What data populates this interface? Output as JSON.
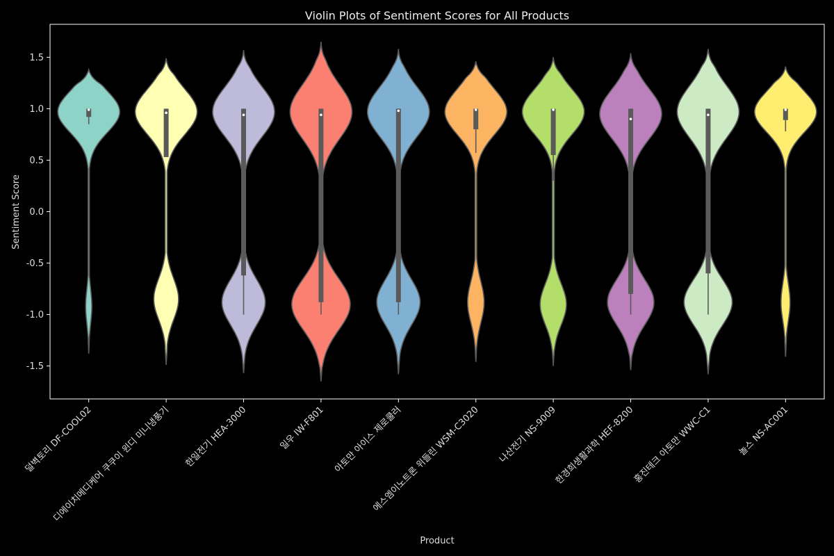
{
  "chart_data": {
    "type": "violin",
    "title": "Violin Plots of Sentiment Scores for All Products",
    "xlabel": "Product",
    "ylabel": "Sentiment Score",
    "ylim": [
      -1.82,
      1.82
    ],
    "yticks": [
      1.5,
      1.0,
      0.5,
      0.0,
      -0.5,
      -1.0,
      -1.5
    ],
    "ytick_labels": [
      "1.5",
      "1.0",
      "0.5",
      "0.0",
      "-0.5",
      "-1.0",
      "-1.5"
    ],
    "grid": false,
    "categories": [
      "덜벽토리 DF-COOL02",
      "디에이치메디케어 쿠쿠이 윈디 미니냉풍기",
      "한일전기 HEA-3000",
      "일우 IW-F801",
      "아토만 아이스 제로쿨러",
      "에스엠이노트론 위들린 WSM-C3020",
      "나산전기 NS-9009",
      "한경희생활과학 HEF-8200",
      "홍진테크 아토만 WWC-C1",
      "놀스 NS-AC001"
    ],
    "colors": [
      "#8dd3c7",
      "#ffffb3",
      "#bebada",
      "#fb8072",
      "#80b1d3",
      "#fdb462",
      "#b3de69",
      "#bc80bd",
      "#ccebc5",
      "#ffed6f"
    ],
    "violins": [
      {
        "min": -1.38,
        "max": 1.38,
        "upper_mode": 0.97,
        "upper_width": 0.4,
        "upper_spread": 0.2,
        "lower_mode": -0.92,
        "lower_width": 0.04,
        "lower_spread": 0.17,
        "q1": 0.92,
        "median": 0.99,
        "q3": 1.0,
        "whisker_low": 0.85,
        "whisker_high": 1.0
      },
      {
        "min": -1.49,
        "max": 1.49,
        "upper_mode": 0.97,
        "upper_width": 0.25,
        "upper_spread": 0.22,
        "lower_mode": -0.85,
        "lower_width": 0.1,
        "lower_spread": 0.2,
        "q1": 0.53,
        "median": 0.96,
        "q3": 1.0,
        "whisker_low": 0.53,
        "whisker_high": 1.0
      },
      {
        "min": -1.57,
        "max": 1.57,
        "upper_mode": 0.97,
        "upper_width": 0.2,
        "upper_spread": 0.24,
        "lower_mode": -0.88,
        "lower_width": 0.14,
        "lower_spread": 0.22,
        "q1": -0.62,
        "median": 0.94,
        "q3": 1.0,
        "whisker_low": -1.0,
        "whisker_high": 1.0
      },
      {
        "min": -1.65,
        "max": 1.65,
        "upper_mode": 0.97,
        "upper_width": 0.18,
        "upper_spread": 0.26,
        "lower_mode": -0.9,
        "lower_width": 0.17,
        "lower_spread": 0.25,
        "q1": -0.88,
        "median": 0.94,
        "q3": 1.0,
        "whisker_low": -1.0,
        "whisker_high": 1.0
      },
      {
        "min": -1.58,
        "max": 1.58,
        "upper_mode": 0.97,
        "upper_width": 0.2,
        "upper_spread": 0.24,
        "lower_mode": -0.88,
        "lower_width": 0.14,
        "lower_spread": 0.22,
        "q1": -0.88,
        "median": 0.98,
        "q3": 1.0,
        "whisker_low": -1.0,
        "whisker_high": 1.0
      },
      {
        "min": -1.46,
        "max": 1.46,
        "upper_mode": 0.97,
        "upper_width": 0.3,
        "upper_spread": 0.22,
        "lower_mode": -0.88,
        "lower_width": 0.08,
        "lower_spread": 0.2,
        "q1": 0.8,
        "median": 0.99,
        "q3": 1.0,
        "whisker_low": 0.57,
        "whisker_high": 1.0
      },
      {
        "min": -1.5,
        "max": 1.5,
        "upper_mode": 0.97,
        "upper_width": 0.26,
        "upper_spread": 0.22,
        "lower_mode": -0.9,
        "lower_width": 0.11,
        "lower_spread": 0.2,
        "q1": 0.55,
        "median": 0.99,
        "q3": 1.0,
        "whisker_low": 0.3,
        "whisker_high": 1.0
      },
      {
        "min": -1.54,
        "max": 1.54,
        "upper_mode": 0.95,
        "upper_width": 0.2,
        "upper_spread": 0.24,
        "lower_mode": -0.88,
        "lower_width": 0.15,
        "lower_spread": 0.22,
        "q1": -0.8,
        "median": 0.9,
        "q3": 1.0,
        "whisker_low": -1.0,
        "whisker_high": 1.0
      },
      {
        "min": -1.58,
        "max": 1.58,
        "upper_mode": 0.97,
        "upper_width": 0.18,
        "upper_spread": 0.25,
        "lower_mode": -0.88,
        "lower_width": 0.14,
        "lower_spread": 0.22,
        "q1": -0.6,
        "median": 0.94,
        "q3": 1.0,
        "whisker_low": -1.0,
        "whisker_high": 1.0
      },
      {
        "min": -1.41,
        "max": 1.41,
        "upper_mode": 0.97,
        "upper_width": 0.34,
        "upper_spread": 0.2,
        "lower_mode": -0.88,
        "lower_width": 0.05,
        "lower_spread": 0.18,
        "q1": 0.89,
        "median": 0.99,
        "q3": 1.0,
        "whisker_low": 0.78,
        "whisker_high": 1.0
      }
    ]
  }
}
